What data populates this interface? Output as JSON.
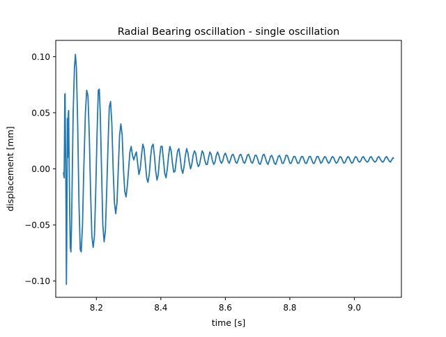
{
  "chart_data": {
    "type": "line",
    "title": "Radial Bearing oscillation - single oscillation",
    "xlabel": "time [s]",
    "ylabel": "displacement [mm]",
    "xlim": [
      8.074,
      9.146
    ],
    "ylim": [
      -0.1145,
      0.1145
    ],
    "xticks": [
      8.2,
      8.4,
      8.6,
      8.8,
      9.0
    ],
    "xtick_labels": [
      "8.2",
      "8.4",
      "8.6",
      "8.8",
      "9.0"
    ],
    "yticks": [
      -0.1,
      -0.05,
      0.0,
      0.05,
      0.1
    ],
    "ytick_labels": [
      "−0.10",
      "−0.05",
      "0.00",
      "0.05",
      "0.10"
    ],
    "grid": false,
    "series": [
      {
        "color": "#1f77b4",
        "points": [
          [
            8.098,
            -0.003
          ],
          [
            8.1,
            -0.008
          ],
          [
            8.101,
            0.02
          ],
          [
            8.102,
            0.066
          ],
          [
            8.103,
            0.067
          ],
          [
            8.104,
            0.03
          ],
          [
            8.105,
            0.0
          ],
          [
            8.106,
            -0.04
          ],
          [
            8.107,
            -0.103
          ],
          [
            8.108,
            -0.07
          ],
          [
            8.109,
            -0.01
          ],
          [
            8.11,
            0.045
          ],
          [
            8.111,
            0.01
          ],
          [
            8.112,
            0.02
          ],
          [
            8.113,
            0.05
          ],
          [
            8.114,
            0.052
          ],
          [
            8.115,
            0.02
          ],
          [
            8.117,
            -0.03
          ],
          [
            8.119,
            -0.07
          ],
          [
            8.121,
            -0.074
          ],
          [
            8.123,
            -0.05
          ],
          [
            8.125,
            -0.01
          ],
          [
            8.128,
            0.05
          ],
          [
            8.132,
            0.09
          ],
          [
            8.135,
            0.102
          ],
          [
            8.138,
            0.09
          ],
          [
            8.142,
            0.04
          ],
          [
            8.146,
            -0.03
          ],
          [
            8.15,
            -0.072
          ],
          [
            8.153,
            -0.074
          ],
          [
            8.157,
            -0.05
          ],
          [
            8.161,
            0.0
          ],
          [
            8.166,
            0.05
          ],
          [
            8.17,
            0.07
          ],
          [
            8.174,
            0.065
          ],
          [
            8.178,
            0.03
          ],
          [
            8.182,
            -0.02
          ],
          [
            8.186,
            -0.06
          ],
          [
            8.19,
            -0.07
          ],
          [
            8.194,
            -0.06
          ],
          [
            8.198,
            -0.02
          ],
          [
            8.202,
            0.03
          ],
          [
            8.206,
            0.07
          ],
          [
            8.209,
            0.071
          ],
          [
            8.212,
            0.05
          ],
          [
            8.216,
            0.0
          ],
          [
            8.22,
            -0.05
          ],
          [
            8.224,
            -0.065
          ],
          [
            8.228,
            -0.055
          ],
          [
            8.232,
            -0.02
          ],
          [
            8.236,
            0.02
          ],
          [
            8.24,
            0.055
          ],
          [
            8.244,
            0.06
          ],
          [
            8.248,
            0.04
          ],
          [
            8.252,
            0.0
          ],
          [
            8.256,
            -0.03
          ],
          [
            8.26,
            -0.04
          ],
          [
            8.264,
            -0.03
          ],
          [
            8.268,
            0.0
          ],
          [
            8.272,
            0.03
          ],
          [
            8.276,
            0.04
          ],
          [
            8.28,
            0.03
          ],
          [
            8.284,
            0.0
          ],
          [
            8.288,
            -0.02
          ],
          [
            8.292,
            -0.025
          ],
          [
            8.296,
            -0.015
          ],
          [
            8.3,
            0.0
          ],
          [
            8.304,
            0.015
          ],
          [
            8.308,
            0.02
          ],
          [
            8.312,
            0.012
          ],
          [
            8.316,
            0.008
          ],
          [
            8.32,
            0.012
          ],
          [
            8.324,
            0.015
          ],
          [
            8.328,
            0.005
          ],
          [
            8.332,
            -0.005
          ],
          [
            8.336,
            0.0
          ],
          [
            8.34,
            0.012
          ],
          [
            8.344,
            0.022
          ],
          [
            8.348,
            0.018
          ],
          [
            8.352,
            0.005
          ],
          [
            8.356,
            -0.008
          ],
          [
            8.36,
            -0.012
          ],
          [
            8.364,
            -0.005
          ],
          [
            8.368,
            0.01
          ],
          [
            8.372,
            0.02
          ],
          [
            8.376,
            0.022
          ],
          [
            8.38,
            0.012
          ],
          [
            8.384,
            -0.002
          ],
          [
            8.388,
            -0.01
          ],
          [
            8.392,
            -0.005
          ],
          [
            8.396,
            0.01
          ],
          [
            8.4,
            0.02
          ],
          [
            8.404,
            0.02
          ],
          [
            8.408,
            0.008
          ],
          [
            8.412,
            -0.004
          ],
          [
            8.416,
            -0.008
          ],
          [
            8.42,
            0.0
          ],
          [
            8.424,
            0.012
          ],
          [
            8.428,
            0.02
          ],
          [
            8.432,
            0.016
          ],
          [
            8.436,
            0.005
          ],
          [
            8.44,
            -0.003
          ],
          [
            8.444,
            -0.002
          ],
          [
            8.448,
            0.008
          ],
          [
            8.452,
            0.016
          ],
          [
            8.456,
            0.018
          ],
          [
            8.46,
            0.01
          ],
          [
            8.464,
            0.0
          ],
          [
            8.468,
            -0.004
          ],
          [
            8.472,
            0.002
          ],
          [
            8.476,
            0.012
          ],
          [
            8.48,
            0.018
          ],
          [
            8.484,
            0.014
          ],
          [
            8.488,
            0.006
          ],
          [
            8.492,
            0.0
          ],
          [
            8.496,
            0.004
          ],
          [
            8.5,
            0.012
          ],
          [
            8.504,
            0.016
          ],
          [
            8.508,
            0.014
          ],
          [
            8.512,
            0.006
          ],
          [
            8.516,
            0.002
          ],
          [
            8.52,
            0.004
          ],
          [
            8.524,
            0.01
          ],
          [
            8.528,
            0.016
          ],
          [
            8.532,
            0.014
          ],
          [
            8.536,
            0.008
          ],
          [
            8.54,
            0.004
          ],
          [
            8.544,
            0.004
          ],
          [
            8.548,
            0.01
          ],
          [
            8.552,
            0.015
          ],
          [
            8.556,
            0.013
          ],
          [
            8.56,
            0.007
          ],
          [
            8.564,
            0.004
          ],
          [
            8.568,
            0.006
          ],
          [
            8.572,
            0.012
          ],
          [
            8.576,
            0.015
          ],
          [
            8.58,
            0.012
          ],
          [
            8.584,
            0.007
          ],
          [
            8.588,
            0.005
          ],
          [
            8.592,
            0.007
          ],
          [
            8.596,
            0.012
          ],
          [
            8.6,
            0.014
          ],
          [
            8.604,
            0.011
          ],
          [
            8.608,
            0.007
          ],
          [
            8.612,
            0.005
          ],
          [
            8.616,
            0.008
          ],
          [
            8.62,
            0.012
          ],
          [
            8.624,
            0.013
          ],
          [
            8.628,
            0.01
          ],
          [
            8.632,
            0.006
          ],
          [
            8.636,
            0.005
          ],
          [
            8.64,
            0.008
          ],
          [
            8.644,
            0.012
          ],
          [
            8.648,
            0.013
          ],
          [
            8.652,
            0.01
          ],
          [
            8.656,
            0.006
          ],
          [
            8.66,
            0.005
          ],
          [
            8.664,
            0.008
          ],
          [
            8.668,
            0.012
          ],
          [
            8.672,
            0.013
          ],
          [
            8.676,
            0.01
          ],
          [
            8.68,
            0.006
          ],
          [
            8.684,
            0.005
          ],
          [
            8.688,
            0.008
          ],
          [
            8.692,
            0.012
          ],
          [
            8.696,
            0.012
          ],
          [
            8.7,
            0.009
          ],
          [
            8.704,
            0.005
          ],
          [
            8.708,
            0.004
          ],
          [
            8.712,
            0.007
          ],
          [
            8.716,
            0.012
          ],
          [
            8.72,
            0.013
          ],
          [
            8.724,
            0.01
          ],
          [
            8.728,
            0.006
          ],
          [
            8.732,
            0.004
          ],
          [
            8.736,
            0.007
          ],
          [
            8.74,
            0.011
          ],
          [
            8.744,
            0.012
          ],
          [
            8.748,
            0.009
          ],
          [
            8.752,
            0.005
          ],
          [
            8.756,
            0.004
          ],
          [
            8.76,
            0.007
          ],
          [
            8.764,
            0.011
          ],
          [
            8.768,
            0.012
          ],
          [
            8.772,
            0.009
          ],
          [
            8.776,
            0.005
          ],
          [
            8.78,
            0.005
          ],
          [
            8.784,
            0.008
          ],
          [
            8.788,
            0.012
          ],
          [
            8.792,
            0.012
          ],
          [
            8.796,
            0.009
          ],
          [
            8.8,
            0.005
          ],
          [
            8.804,
            0.005
          ],
          [
            8.808,
            0.008
          ],
          [
            8.812,
            0.011
          ],
          [
            8.816,
            0.011
          ],
          [
            8.82,
            0.008
          ],
          [
            8.824,
            0.005
          ],
          [
            8.828,
            0.005
          ],
          [
            8.832,
            0.008
          ],
          [
            8.836,
            0.011
          ],
          [
            8.84,
            0.011
          ],
          [
            8.844,
            0.008
          ],
          [
            8.848,
            0.005
          ],
          [
            8.852,
            0.005
          ],
          [
            8.856,
            0.008
          ],
          [
            8.86,
            0.011
          ],
          [
            8.864,
            0.011
          ],
          [
            8.868,
            0.008
          ],
          [
            8.872,
            0.005
          ],
          [
            8.876,
            0.005
          ],
          [
            8.88,
            0.008
          ],
          [
            8.884,
            0.011
          ],
          [
            8.888,
            0.011
          ],
          [
            8.892,
            0.008
          ],
          [
            8.896,
            0.005
          ],
          [
            8.9,
            0.006
          ],
          [
            8.904,
            0.009
          ],
          [
            8.908,
            0.011
          ],
          [
            8.912,
            0.01
          ],
          [
            8.916,
            0.007
          ],
          [
            8.92,
            0.005
          ],
          [
            8.924,
            0.006
          ],
          [
            8.928,
            0.009
          ],
          [
            8.932,
            0.011
          ],
          [
            8.936,
            0.01
          ],
          [
            8.94,
            0.007
          ],
          [
            8.944,
            0.005
          ],
          [
            8.948,
            0.006
          ],
          [
            8.952,
            0.009
          ],
          [
            8.956,
            0.011
          ],
          [
            8.96,
            0.01
          ],
          [
            8.964,
            0.007
          ],
          [
            8.968,
            0.005
          ],
          [
            8.972,
            0.006
          ],
          [
            8.976,
            0.009
          ],
          [
            8.98,
            0.011
          ],
          [
            8.984,
            0.01
          ],
          [
            8.988,
            0.007
          ],
          [
            8.992,
            0.005
          ],
          [
            8.996,
            0.006
          ],
          [
            9.0,
            0.009
          ],
          [
            9.004,
            0.011
          ],
          [
            9.008,
            0.01
          ],
          [
            9.012,
            0.007
          ],
          [
            9.016,
            0.006
          ],
          [
            9.02,
            0.007
          ],
          [
            9.024,
            0.01
          ],
          [
            9.028,
            0.011
          ],
          [
            9.032,
            0.009
          ],
          [
            9.036,
            0.007
          ],
          [
            9.04,
            0.006
          ],
          [
            9.044,
            0.007
          ],
          [
            9.048,
            0.01
          ],
          [
            9.052,
            0.011
          ],
          [
            9.056,
            0.009
          ],
          [
            9.06,
            0.007
          ],
          [
            9.064,
            0.006
          ],
          [
            9.068,
            0.007
          ],
          [
            9.072,
            0.01
          ],
          [
            9.076,
            0.011
          ],
          [
            9.08,
            0.009
          ],
          [
            9.084,
            0.007
          ],
          [
            9.088,
            0.006
          ],
          [
            9.092,
            0.007
          ],
          [
            9.096,
            0.01
          ],
          [
            9.1,
            0.011
          ],
          [
            9.104,
            0.009
          ],
          [
            9.108,
            0.007
          ],
          [
            9.112,
            0.006
          ],
          [
            9.116,
            0.008
          ],
          [
            9.12,
            0.01
          ],
          [
            9.122,
            0.009
          ]
        ]
      }
    ]
  }
}
